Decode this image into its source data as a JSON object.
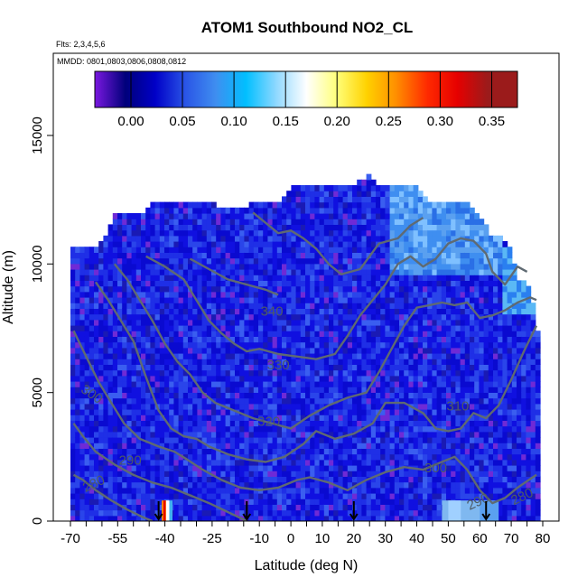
{
  "chart_data": {
    "type": "heatmap",
    "title": "ATOM1 Southbound NO2_CL",
    "subtitle": "Flts: 2,3,4,5,6",
    "annotation": "MMDD: 0801,0803,0806,0808,0812",
    "xlabel": "Latitude (deg N)",
    "ylabel": "Altitude (m)",
    "xlim": [
      -70,
      80
    ],
    "ylim": [
      0,
      18000
    ],
    "x_tick_labels": [
      "-70",
      "-55",
      "-40",
      "-25",
      "-10",
      "0",
      "10",
      "20",
      "30",
      "40",
      "50",
      "60",
      "70",
      "80"
    ],
    "y_tick_labels": [
      "0",
      "5000",
      "10000",
      "15000"
    ],
    "colorbar": {
      "min": -0.035,
      "max": 0.375,
      "tick_labels": [
        "0.00",
        "0.05",
        "0.10",
        "0.15",
        "0.20",
        "0.25",
        "0.30",
        "0.35"
      ],
      "colors": [
        "#7a18e0",
        "#00007a",
        "#0000c8",
        "#2a55e6",
        "#3f8ef0",
        "#00bfff",
        "#8fd8ff",
        "#ffffff",
        "#ffff7a",
        "#ffd200",
        "#ff8c00",
        "#ff2a00",
        "#e60000",
        "#9b1b1b"
      ]
    },
    "contours": [
      {
        "label": "280",
        "points": [
          [
            -69,
            1800
          ],
          [
            -66,
            1600
          ],
          [
            -62,
            1200
          ],
          [
            -57,
            800
          ],
          [
            -52,
            450
          ],
          [
            -47,
            150
          ],
          [
            -44,
            0
          ]
        ]
      },
      {
        "label": "290",
        "points": [
          [
            -69,
            3800
          ],
          [
            -66,
            3300
          ],
          [
            -62,
            2700
          ],
          [
            -56,
            2200
          ],
          [
            -50,
            1800
          ],
          [
            -44,
            1500
          ],
          [
            -38,
            1300
          ],
          [
            -32,
            1000
          ],
          [
            -26,
            700
          ],
          [
            -20,
            350
          ],
          [
            -14,
            0
          ]
        ]
      },
      {
        "label": "300",
        "points": [
          [
            -69,
            7400
          ],
          [
            -65,
            6400
          ],
          [
            -61,
            5400
          ],
          [
            -57,
            4600
          ],
          [
            -53,
            3800
          ],
          [
            -48,
            3200
          ],
          [
            -42,
            2900
          ],
          [
            -37,
            2700
          ],
          [
            -33,
            2400
          ],
          [
            -28,
            2000
          ],
          [
            -22,
            1600
          ],
          [
            -16,
            1300
          ],
          [
            -10,
            1200
          ],
          [
            -4,
            1300
          ],
          [
            2,
            1600
          ],
          [
            6,
            1700
          ],
          [
            12,
            1500
          ],
          [
            18,
            1200
          ],
          [
            24,
            1600
          ],
          [
            30,
            1900
          ],
          [
            36,
            2100
          ],
          [
            42,
            2000
          ],
          [
            48,
            2300
          ],
          [
            52,
            2500
          ],
          [
            56,
            2000
          ],
          [
            60,
            1200
          ],
          [
            64,
            700
          ],
          [
            68,
            900
          ],
          [
            72,
            1300
          ],
          [
            78,
            1800
          ]
        ]
      },
      {
        "label": "310",
        "points": [
          [
            -62,
            9300
          ],
          [
            -58,
            8600
          ],
          [
            -54,
            7800
          ],
          [
            -50,
            7000
          ],
          [
            -46,
            5600
          ],
          [
            -42,
            4300
          ],
          [
            -38,
            3600
          ],
          [
            -34,
            3300
          ],
          [
            -30,
            3200
          ],
          [
            -26,
            2900
          ],
          [
            -20,
            2600
          ],
          [
            -14,
            2400
          ],
          [
            -8,
            2300
          ],
          [
            -2,
            2500
          ],
          [
            4,
            3000
          ],
          [
            8,
            3500
          ],
          [
            14,
            3200
          ],
          [
            20,
            3400
          ],
          [
            26,
            3800
          ],
          [
            30,
            4600
          ],
          [
            36,
            4600
          ],
          [
            42,
            4200
          ],
          [
            46,
            3600
          ],
          [
            50,
            3500
          ],
          [
            54,
            3600
          ],
          [
            58,
            4200
          ],
          [
            62,
            4000
          ],
          [
            66,
            4500
          ],
          [
            70,
            5500
          ],
          [
            74,
            6600
          ],
          [
            78,
            7600
          ]
        ]
      },
      {
        "label": "320",
        "points": [
          [
            -56,
            10000
          ],
          [
            -52,
            9400
          ],
          [
            -48,
            8600
          ],
          [
            -44,
            7800
          ],
          [
            -40,
            6900
          ],
          [
            -36,
            6200
          ],
          [
            -32,
            5700
          ],
          [
            -28,
            5000
          ],
          [
            -24,
            4600
          ],
          [
            -18,
            4300
          ],
          [
            -12,
            4000
          ],
          [
            -6,
            3800
          ],
          [
            0,
            3600
          ],
          [
            6,
            4100
          ],
          [
            12,
            4500
          ],
          [
            18,
            4800
          ],
          [
            24,
            5000
          ],
          [
            28,
            5800
          ],
          [
            32,
            6700
          ],
          [
            36,
            7600
          ],
          [
            40,
            8300
          ],
          [
            44,
            8400
          ],
          [
            48,
            8500
          ],
          [
            52,
            8400
          ],
          [
            56,
            8500
          ],
          [
            60,
            7900
          ],
          [
            64,
            8000
          ],
          [
            68,
            8200
          ],
          [
            72,
            8500
          ],
          [
            76,
            8700
          ],
          [
            78,
            8600
          ]
        ]
      },
      {
        "label": "330",
        "points": [
          [
            -46,
            10300
          ],
          [
            -40,
            9900
          ],
          [
            -34,
            9400
          ],
          [
            -30,
            8600
          ],
          [
            -26,
            7800
          ],
          [
            -22,
            7300
          ],
          [
            -18,
            6900
          ],
          [
            -14,
            6600
          ],
          [
            -10,
            6700
          ],
          [
            -4,
            6500
          ],
          [
            2,
            6400
          ],
          [
            8,
            6300
          ],
          [
            14,
            6500
          ],
          [
            18,
            7200
          ],
          [
            22,
            8000
          ],
          [
            26,
            8600
          ],
          [
            30,
            9200
          ],
          [
            34,
            10000
          ],
          [
            38,
            10300
          ],
          [
            42,
            9900
          ],
          [
            46,
            10200
          ],
          [
            50,
            10800
          ],
          [
            54,
            11000
          ],
          [
            58,
            10900
          ],
          [
            62,
            10400
          ],
          [
            64,
            9700
          ],
          [
            68,
            9200
          ],
          [
            72,
            9900
          ],
          [
            75,
            9700
          ]
        ]
      },
      {
        "label": "340",
        "points": [
          [
            -32,
            10200
          ],
          [
            -26,
            9800
          ],
          [
            -20,
            9400
          ],
          [
            -14,
            9200
          ],
          [
            -8,
            9000
          ],
          [
            -4,
            8800
          ]
        ]
      },
      {
        "label": "",
        "points": [
          [
            -12,
            12000
          ],
          [
            -8,
            11600
          ],
          [
            -4,
            11200
          ],
          [
            0,
            11300
          ],
          [
            4,
            11000
          ],
          [
            8,
            10600
          ],
          [
            12,
            10000
          ],
          [
            16,
            9600
          ],
          [
            22,
            9800
          ],
          [
            28,
            10800
          ],
          [
            34,
            11000
          ],
          [
            38,
            11500
          ],
          [
            42,
            11800
          ]
        ]
      }
    ],
    "arrows": [
      -42,
      -14,
      20,
      62
    ]
  }
}
